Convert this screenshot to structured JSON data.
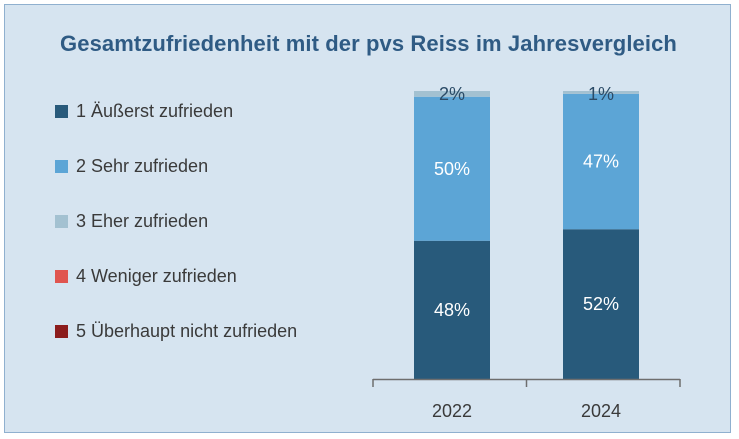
{
  "chart_data": {
    "type": "bar",
    "stacked": true,
    "title": "Gesamtzufriedenheit mit der pvs Reiss im Jahresvergleich",
    "categories": [
      "2022",
      "2024"
    ],
    "series": [
      {
        "name": "1 Äußerst zufrieden",
        "color": "#285a7b",
        "values": [
          48,
          52
        ],
        "labels": [
          "48%",
          "52%"
        ]
      },
      {
        "name": "2 Sehr zufrieden",
        "color": "#5ca5d6",
        "values": [
          50,
          47
        ],
        "labels": [
          "50%",
          "47%"
        ]
      },
      {
        "name": "3 Eher zufrieden",
        "color": "#a3c1d1",
        "values": [
          2,
          1
        ],
        "labels": [
          "2%",
          "1%"
        ]
      },
      {
        "name": "4 Weniger zufrieden",
        "color": "#e0554f",
        "values": [
          0,
          0
        ],
        "labels": [
          "",
          ""
        ]
      },
      {
        "name": "5 Überhaupt nicht zufrieden",
        "color": "#8b1c1c",
        "values": [
          0,
          0
        ],
        "labels": [
          "",
          ""
        ]
      }
    ],
    "ylim": [
      0,
      100
    ],
    "legend_position": "left",
    "grid": false
  }
}
